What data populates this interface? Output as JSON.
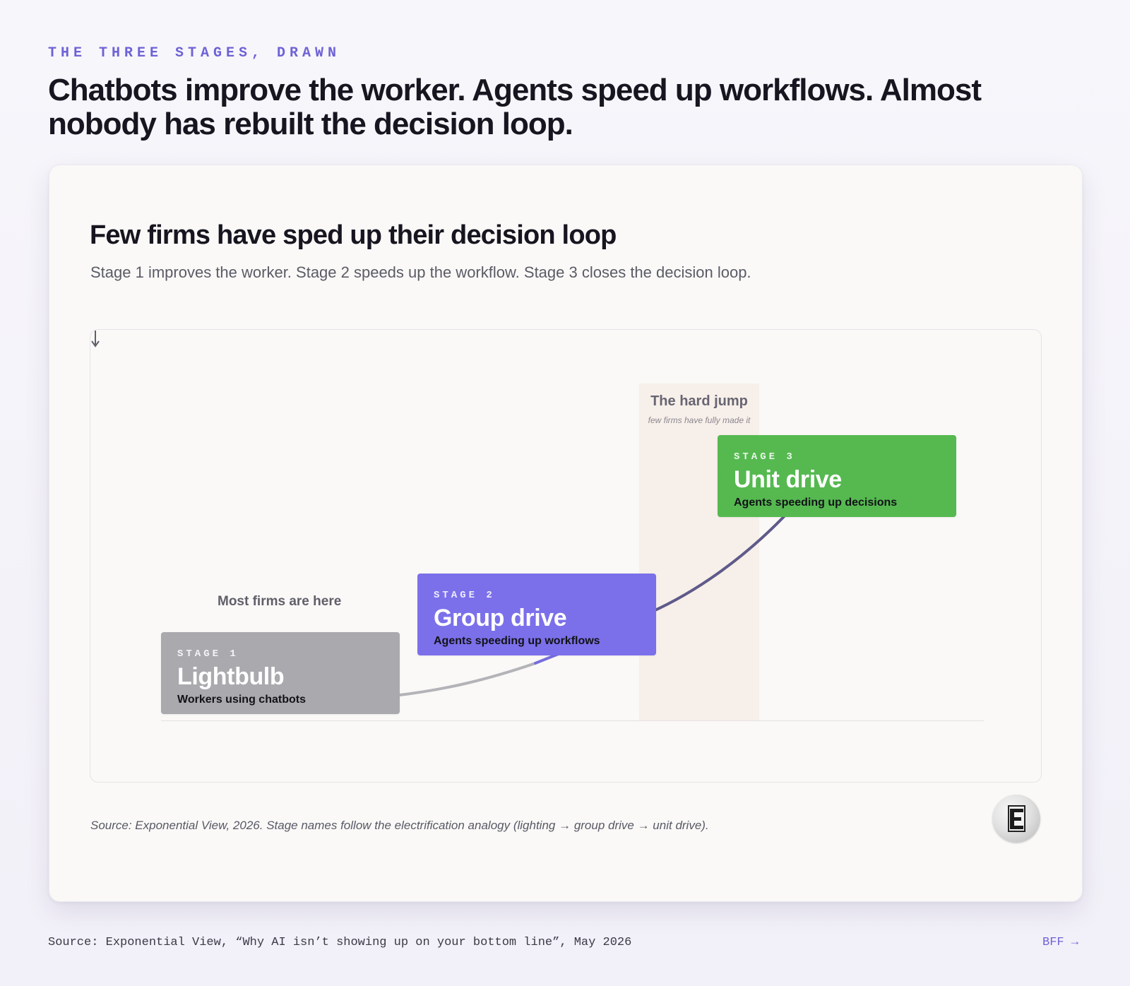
{
  "header": {
    "eyebrow": "THE THREE STAGES, DRAWN",
    "headline": "Chatbots improve the worker. Agents speed up workflows. Almost nobody has rebuilt the decision loop."
  },
  "card": {
    "title": "Few firms have sped up their decision loop",
    "subtitle": "Stage 1 improves the worker. Stage 2 speeds up the workflow. Stage 3 closes the decision loop.",
    "source": "Source: Exponential View, 2026. Stage names follow the electrification analogy (lighting → group drive → unit drive).",
    "logo_letter": "E"
  },
  "diagram": {
    "hard_jump_title": "The hard jump",
    "hard_jump_note": "few firms have fully made it",
    "callout": "Most firms are here",
    "stages": [
      {
        "kicker": "STAGE 1",
        "name": "Lightbulb",
        "description": "Workers using chatbots",
        "color": "#a9a9ae"
      },
      {
        "kicker": "STAGE 2",
        "name": "Group drive",
        "description": "Agents speeding up workflows",
        "color": "#7b70ea"
      },
      {
        "kicker": "STAGE 3",
        "name": "Unit drive",
        "description": "Agents speeding up decisions",
        "color": "#55b950"
      }
    ],
    "colors": {
      "curve_gray": "#b3b3b8",
      "curve_purple": "#776ddd",
      "curve_dark": "#5e5a8a",
      "hard_jump_band": "#f7efe9"
    }
  },
  "footer": {
    "source": "Source: Exponential View, “Why AI isn’t showing up on your bottom line”, May 2026",
    "link": "BFF →"
  }
}
